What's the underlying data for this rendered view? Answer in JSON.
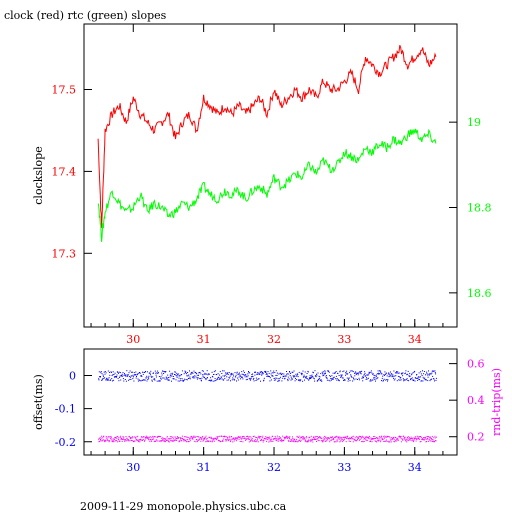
{
  "colors": {
    "red": "#ff0000",
    "green": "#00ff00",
    "blue": "#0000ff",
    "magenta": "#ff00ff",
    "black": "#000000"
  },
  "chart_data": [
    {
      "type": "line",
      "title": "clock (red) rtc (green) slopes",
      "ylabel_left": "clockslope",
      "xlim": [
        29.3,
        34.6
      ],
      "ylim_left": [
        17.21,
        17.58
      ],
      "ylim_right": [
        18.52,
        19.23
      ],
      "x_ticks": [
        30,
        31,
        32,
        33,
        34
      ],
      "y_ticks_left": [
        17.3,
        17.4,
        17.5
      ],
      "y_ticks_right": [
        18.6,
        18.8,
        19
      ],
      "series": [
        {
          "axis": "left",
          "color": "#ff0000",
          "x": [
            29.5,
            29.55,
            29.6,
            29.7,
            29.8,
            29.9,
            30.0,
            30.1,
            30.2,
            30.3,
            30.4,
            30.5,
            30.6,
            30.7,
            30.8,
            30.9,
            31.0,
            31.1,
            31.2,
            31.3,
            31.4,
            31.5,
            31.6,
            31.7,
            31.8,
            31.9,
            32.0,
            32.1,
            32.2,
            32.3,
            32.4,
            32.5,
            32.6,
            32.7,
            32.8,
            32.9,
            33.0,
            33.1,
            33.2,
            33.3,
            33.4,
            33.5,
            33.6,
            33.7,
            33.8,
            33.9,
            34.0,
            34.1,
            34.2,
            34.3
          ],
          "y": [
            17.44,
            17.33,
            17.45,
            17.47,
            17.48,
            17.46,
            17.49,
            17.47,
            17.46,
            17.45,
            17.46,
            17.47,
            17.44,
            17.46,
            17.47,
            17.45,
            17.49,
            17.48,
            17.47,
            17.48,
            17.47,
            17.48,
            17.47,
            17.48,
            17.49,
            17.47,
            17.5,
            17.48,
            17.49,
            17.5,
            17.49,
            17.5,
            17.49,
            17.51,
            17.5,
            17.5,
            17.51,
            17.52,
            17.5,
            17.54,
            17.53,
            17.52,
            17.53,
            17.54,
            17.55,
            17.53,
            17.54,
            17.55,
            17.53,
            17.54
          ]
        },
        {
          "axis": "right",
          "color": "#00ff00",
          "x": [
            29.5,
            29.55,
            29.6,
            29.7,
            29.8,
            29.9,
            30.0,
            30.1,
            30.2,
            30.3,
            30.4,
            30.5,
            30.6,
            30.7,
            30.8,
            30.9,
            31.0,
            31.1,
            31.2,
            31.3,
            31.4,
            31.5,
            31.6,
            31.7,
            31.8,
            31.9,
            32.0,
            32.1,
            32.2,
            32.3,
            32.4,
            32.5,
            32.6,
            32.7,
            32.8,
            32.9,
            33.0,
            33.1,
            33.2,
            33.3,
            33.4,
            33.5,
            33.6,
            33.7,
            33.8,
            33.9,
            34.0,
            34.1,
            34.2,
            34.3
          ],
          "y": [
            18.82,
            18.73,
            18.79,
            18.84,
            18.81,
            18.79,
            18.8,
            18.83,
            18.79,
            18.81,
            18.8,
            18.78,
            18.79,
            18.81,
            18.8,
            18.82,
            18.85,
            18.83,
            18.82,
            18.84,
            18.83,
            18.84,
            18.82,
            18.84,
            18.85,
            18.83,
            18.87,
            18.85,
            18.86,
            18.88,
            18.87,
            18.9,
            18.88,
            18.91,
            18.89,
            18.9,
            18.93,
            18.92,
            18.91,
            18.94,
            18.93,
            18.95,
            18.94,
            18.96,
            18.95,
            18.97,
            18.98,
            18.96,
            18.97,
            18.95
          ]
        }
      ]
    },
    {
      "type": "scatter",
      "ylabel_left": "offset(ms)",
      "ylabel_right": "rnd-trip(ms)",
      "xlim": [
        29.3,
        34.6
      ],
      "ylim_left": [
        -0.24,
        0.08
      ],
      "ylim_right": [
        0.1,
        0.68
      ],
      "x_ticks": [
        30,
        31,
        32,
        33,
        34
      ],
      "y_ticks_left": [
        -0.2,
        -0.1,
        0
      ],
      "y_ticks_right": [
        0.2,
        0.4,
        0.6
      ],
      "series": [
        {
          "axis": "left",
          "color": "#0000ff",
          "x_range": [
            29.5,
            34.3
          ],
          "y_center": 0.0,
          "y_spread": 0.01
        },
        {
          "axis": "right",
          "color": "#ff00ff",
          "x_range": [
            29.5,
            34.3
          ],
          "y_center": 0.19,
          "y_spread": 0.01
        }
      ]
    }
  ],
  "footer": "2009-11-29 monopole.physics.ubc.ca"
}
